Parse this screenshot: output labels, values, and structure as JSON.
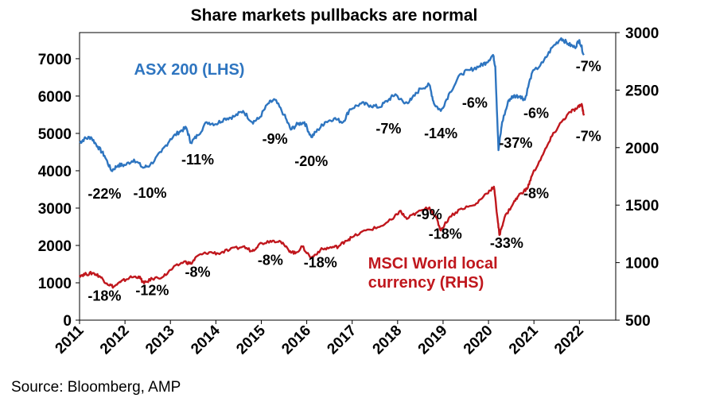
{
  "chart_data": {
    "type": "line",
    "title": "Share markets pullbacks are normal",
    "source": "Source: Bloomberg, AMP",
    "x_ticks": [
      "2011",
      "2012",
      "2013",
      "2014",
      "2015",
      "2016",
      "2017",
      "2018",
      "2019",
      "2020",
      "2021",
      "2022"
    ],
    "xlim": [
      2011,
      2022.8
    ],
    "y_left": {
      "ticks": [
        "0",
        "1000",
        "2000",
        "3000",
        "4000",
        "5000",
        "6000",
        "7000"
      ],
      "ylim": [
        0,
        7700
      ]
    },
    "y_right": {
      "ticks": [
        "500",
        "1000",
        "1500",
        "2000",
        "2500",
        "3000"
      ],
      "ylim": [
        500,
        3000
      ]
    },
    "series": [
      {
        "name": "ASX 200 (LHS)",
        "axis": "left",
        "color": "#2e75c0",
        "points": [
          [
            2011.0,
            4750
          ],
          [
            2011.1,
            4850
          ],
          [
            2011.25,
            4900
          ],
          [
            2011.4,
            4650
          ],
          [
            2011.55,
            4400
          ],
          [
            2011.7,
            4000
          ],
          [
            2011.85,
            4150
          ],
          [
            2012.0,
            4150
          ],
          [
            2012.2,
            4300
          ],
          [
            2012.4,
            4080
          ],
          [
            2012.55,
            4150
          ],
          [
            2012.8,
            4500
          ],
          [
            2013.0,
            4850
          ],
          [
            2013.2,
            5050
          ],
          [
            2013.35,
            5150
          ],
          [
            2013.45,
            4750
          ],
          [
            2013.6,
            4950
          ],
          [
            2013.8,
            5300
          ],
          [
            2014.0,
            5250
          ],
          [
            2014.2,
            5400
          ],
          [
            2014.4,
            5450
          ],
          [
            2014.6,
            5600
          ],
          [
            2014.8,
            5300
          ],
          [
            2014.95,
            5400
          ],
          [
            2015.15,
            5800
          ],
          [
            2015.3,
            5900
          ],
          [
            2015.5,
            5500
          ],
          [
            2015.65,
            5100
          ],
          [
            2015.8,
            5250
          ],
          [
            2015.95,
            5300
          ],
          [
            2016.1,
            4900
          ],
          [
            2016.25,
            5100
          ],
          [
            2016.4,
            5300
          ],
          [
            2016.6,
            5400
          ],
          [
            2016.8,
            5300
          ],
          [
            2016.95,
            5650
          ],
          [
            2017.2,
            5800
          ],
          [
            2017.4,
            5750
          ],
          [
            2017.6,
            5700
          ],
          [
            2017.8,
            5900
          ],
          [
            2017.95,
            6050
          ],
          [
            2018.15,
            5800
          ],
          [
            2018.3,
            5900
          ],
          [
            2018.5,
            6200
          ],
          [
            2018.7,
            6300
          ],
          [
            2018.8,
            5800
          ],
          [
            2018.95,
            5600
          ],
          [
            2019.15,
            6100
          ],
          [
            2019.4,
            6600
          ],
          [
            2019.6,
            6700
          ],
          [
            2019.8,
            6800
          ],
          [
            2019.95,
            6900
          ],
          [
            2020.1,
            7100
          ],
          [
            2020.15,
            6800
          ],
          [
            2020.22,
            4550
          ],
          [
            2020.3,
            5300
          ],
          [
            2020.45,
            5900
          ],
          [
            2020.55,
            6000
          ],
          [
            2020.7,
            6000
          ],
          [
            2020.8,
            5900
          ],
          [
            2020.95,
            6600
          ],
          [
            2021.2,
            6900
          ],
          [
            2021.4,
            7300
          ],
          [
            2021.6,
            7550
          ],
          [
            2021.75,
            7400
          ],
          [
            2021.9,
            7300
          ],
          [
            2022.0,
            7500
          ],
          [
            2022.1,
            7100
          ]
        ],
        "annotations": [
          {
            "label": "-22%",
            "x": 2011.55,
            "y": 3380
          },
          {
            "label": "-10%",
            "x": 2012.55,
            "y": 3400
          },
          {
            "label": "-11%",
            "x": 2013.6,
            "y": 4300
          },
          {
            "label": "-9%",
            "x": 2015.3,
            "y": 4850
          },
          {
            "label": "-20%",
            "x": 2016.1,
            "y": 4250
          },
          {
            "label": "-7%",
            "x": 2017.8,
            "y": 5130
          },
          {
            "label": "-14%",
            "x": 2018.95,
            "y": 5000
          },
          {
            "label": "-6%",
            "x": 2019.7,
            "y": 5820
          },
          {
            "label": "-37%",
            "x": 2020.6,
            "y": 4740
          },
          {
            "label": "-6%",
            "x": 2021.05,
            "y": 5540
          },
          {
            "label": "-7%",
            "x": 2022.2,
            "y": 6800
          }
        ]
      },
      {
        "name": "MSCI World local currency (RHS)",
        "axis": "right",
        "color": "#c0171d",
        "points": [
          [
            2011.0,
            890
          ],
          [
            2011.15,
            900
          ],
          [
            2011.3,
            910
          ],
          [
            2011.45,
            880
          ],
          [
            2011.6,
            820
          ],
          [
            2011.75,
            790
          ],
          [
            2011.9,
            830
          ],
          [
            2012.1,
            870
          ],
          [
            2012.3,
            880
          ],
          [
            2012.42,
            820
          ],
          [
            2012.6,
            860
          ],
          [
            2012.85,
            880
          ],
          [
            2013.05,
            950
          ],
          [
            2013.3,
            1010
          ],
          [
            2013.45,
            990
          ],
          [
            2013.6,
            1060
          ],
          [
            2013.85,
            1090
          ],
          [
            2014.05,
            1080
          ],
          [
            2014.3,
            1110
          ],
          [
            2014.6,
            1140
          ],
          [
            2014.8,
            1100
          ],
          [
            2014.95,
            1160
          ],
          [
            2015.2,
            1190
          ],
          [
            2015.4,
            1190
          ],
          [
            2015.6,
            1110
          ],
          [
            2015.75,
            1080
          ],
          [
            2015.9,
            1140
          ],
          [
            2016.1,
            1040
          ],
          [
            2016.3,
            1110
          ],
          [
            2016.5,
            1130
          ],
          [
            2016.7,
            1140
          ],
          [
            2016.85,
            1190
          ],
          [
            2017.0,
            1220
          ],
          [
            2017.3,
            1280
          ],
          [
            2017.6,
            1310
          ],
          [
            2017.9,
            1380
          ],
          [
            2018.05,
            1450
          ],
          [
            2018.2,
            1380
          ],
          [
            2018.4,
            1430
          ],
          [
            2018.7,
            1480
          ],
          [
            2018.85,
            1390
          ],
          [
            2018.95,
            1280
          ],
          [
            2019.15,
            1400
          ],
          [
            2019.4,
            1470
          ],
          [
            2019.7,
            1500
          ],
          [
            2019.95,
            1600
          ],
          [
            2020.12,
            1660
          ],
          [
            2020.2,
            1380
          ],
          [
            2020.24,
            1240
          ],
          [
            2020.35,
            1390
          ],
          [
            2020.55,
            1520
          ],
          [
            2020.7,
            1600
          ],
          [
            2020.85,
            1640
          ],
          [
            2020.97,
            1770
          ],
          [
            2021.2,
            1940
          ],
          [
            2021.4,
            2100
          ],
          [
            2021.6,
            2220
          ],
          [
            2021.8,
            2310
          ],
          [
            2021.95,
            2340
          ],
          [
            2022.05,
            2380
          ],
          [
            2022.1,
            2280
          ]
        ],
        "annotations": [
          {
            "label": "-18%",
            "x": 2011.55,
            "y": 710
          },
          {
            "label": "-12%",
            "x": 2012.6,
            "y": 760
          },
          {
            "label": "-8%",
            "x": 2013.6,
            "y": 918
          },
          {
            "label": "-8%",
            "x": 2015.2,
            "y": 1020
          },
          {
            "label": "-18%",
            "x": 2016.3,
            "y": 1000
          },
          {
            "label": "-9%",
            "x": 2018.7,
            "y": 1420
          },
          {
            "label": "-18%",
            "x": 2019.05,
            "y": 1250
          },
          {
            "label": "-33%",
            "x": 2020.4,
            "y": 1170
          },
          {
            "label": "-8%",
            "x": 2021.05,
            "y": 1600
          },
          {
            "label": "-7%",
            "x": 2022.2,
            "y": 2100
          }
        ]
      }
    ],
    "series_labels": [
      {
        "text": "ASX 200 (LHS)",
        "color": "#2e75c0",
        "x": 2012.2,
        "y": 6720
      },
      {
        "text": "MSCI World local",
        "color": "#c0171d",
        "x": 2017.35,
        "y": 1530
      },
      {
        "text": "currency (RHS)",
        "color": "#c0171d",
        "x": 2017.35,
        "y": 1020
      }
    ]
  }
}
